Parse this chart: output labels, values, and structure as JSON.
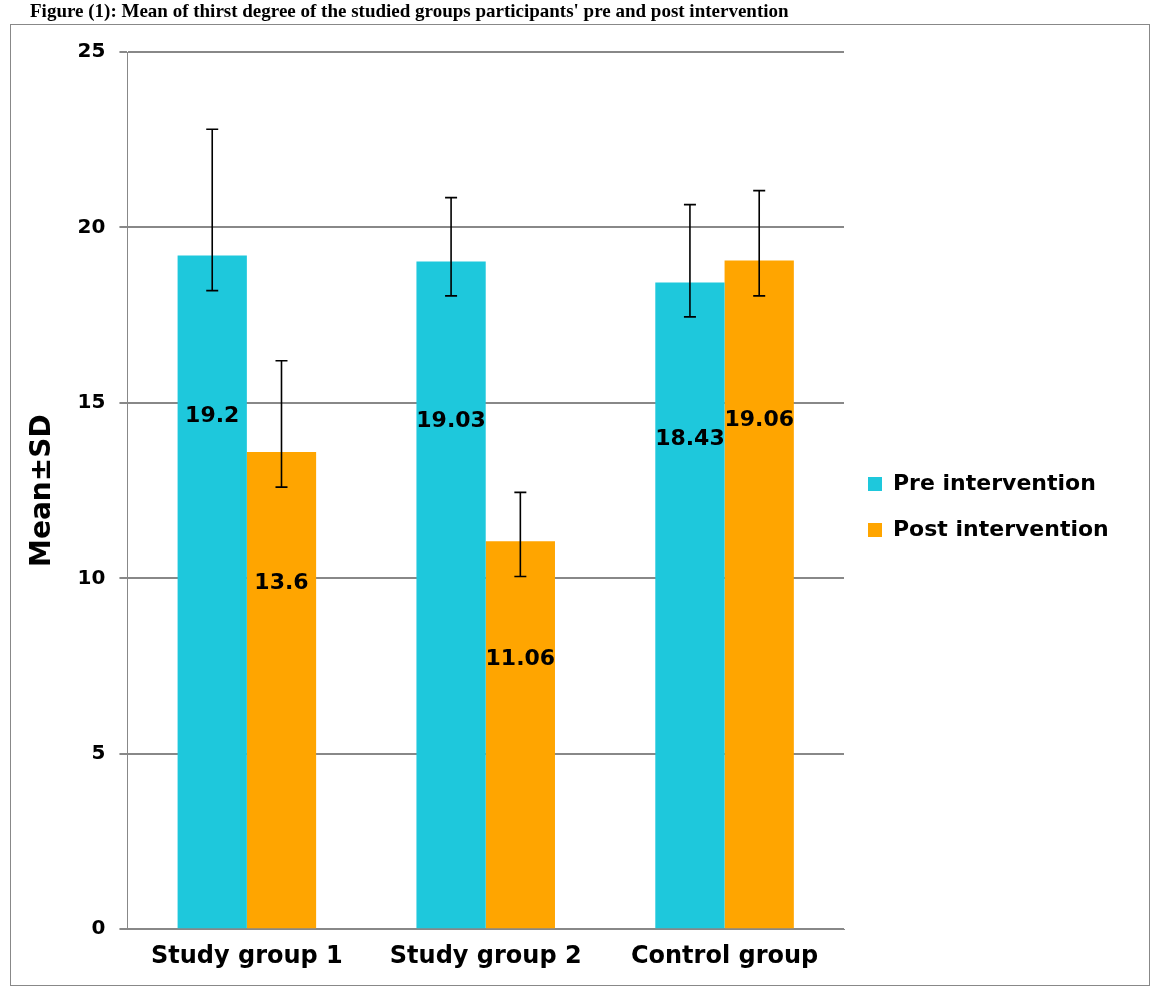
{
  "chart_data": {
    "type": "bar",
    "title": "Figure (1): Mean of thirst degree of the studied groups participants' pre and post intervention",
    "ylabel": "Mean±SD",
    "categories": [
      "Study group 1",
      "Study group 2",
      "Control group"
    ],
    "series": [
      {
        "name": "Pre intervention",
        "color": "#1ec8dc",
        "values": [
          19.2,
          19.03,
          18.43
        ],
        "errors": [
          [
            18.2,
            22.8
          ],
          [
            18.05,
            20.85
          ],
          [
            17.45,
            20.65
          ]
        ]
      },
      {
        "name": "Post intervention",
        "color": "#ffa500",
        "values": [
          13.6,
          11.06,
          19.06
        ],
        "errors": [
          [
            12.6,
            16.2
          ],
          [
            10.05,
            12.45
          ],
          [
            18.05,
            21.05
          ]
        ]
      }
    ],
    "ylim": [
      0,
      25
    ],
    "yticks": [
      0,
      5,
      10,
      15,
      20,
      25
    ],
    "grid": "y",
    "legend": "right",
    "data_labels": true
  }
}
